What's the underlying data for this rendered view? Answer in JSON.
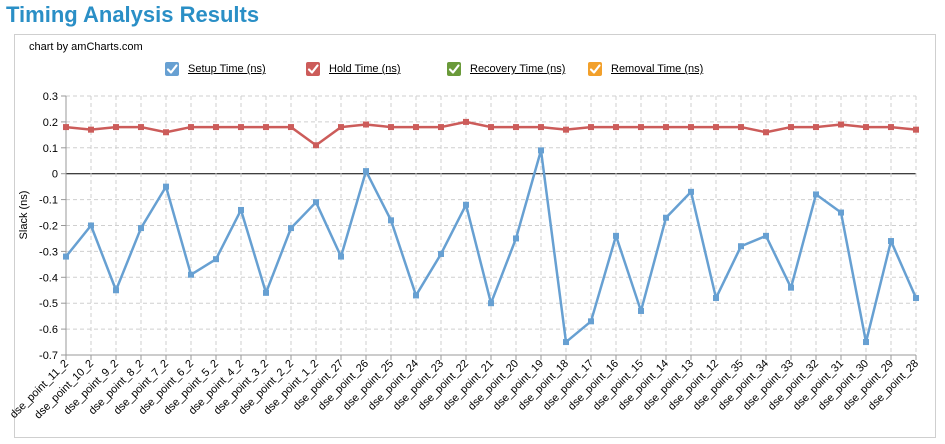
{
  "page": {
    "title": "Timing Analysis Results"
  },
  "chart": {
    "credit": "chart by amCharts.com"
  },
  "legend": [
    {
      "label": "Setup Time (ns)",
      "color": "#67a0d2",
      "checked": true
    },
    {
      "label": "Hold Time (ns)",
      "color": "#cc5c5a",
      "checked": true
    },
    {
      "label": "Recovery Time (ns)",
      "color": "#6a9a3a",
      "checked": true
    },
    {
      "label": "Removal Time (ns)",
      "color": "#f2a02b",
      "checked": true
    }
  ],
  "chart_data": {
    "type": "line",
    "ylabel": "Slack (ns)",
    "ylim": [
      -0.7,
      0.3
    ],
    "yticks": [
      0.3,
      0.2,
      0.1,
      0,
      -0.1,
      -0.2,
      -0.3,
      -0.4,
      -0.5,
      -0.6,
      -0.7
    ],
    "grid": true,
    "legend_position": "top",
    "categories": [
      "dse_point_11_2",
      "dse_point_10_2",
      "dse_point_9_2",
      "dse_point_8_2",
      "dse_point_7_2",
      "dse_point_6_2",
      "dse_point_5_2",
      "dse_point_4_2",
      "dse_point_3_2",
      "dse_point_2_2",
      "dse_point_1_2",
      "dse_point_27",
      "dse_point_26",
      "dse_point_25",
      "dse_point_24",
      "dse_point_23",
      "dse_point_22",
      "dse_point_21",
      "dse_point_20",
      "dse_point_19",
      "dse_point_18",
      "dse_point_17",
      "dse_point_16",
      "dse_point_15",
      "dse_point_14",
      "dse_point_13",
      "dse_point_12",
      "dse_point_35",
      "dse_point_34",
      "dse_point_33",
      "dse_point_32",
      "dse_point_31",
      "dse_point_30",
      "dse_point_29",
      "dse_point_28"
    ],
    "series": [
      {
        "name": "Setup Time (ns)",
        "color": "#67a0d2",
        "values": [
          -0.32,
          -0.2,
          -0.45,
          -0.21,
          -0.05,
          -0.39,
          -0.33,
          -0.14,
          -0.46,
          -0.21,
          -0.11,
          -0.32,
          0.01,
          -0.18,
          -0.47,
          -0.31,
          -0.12,
          -0.5,
          -0.25,
          0.09,
          -0.65,
          -0.57,
          -0.24,
          -0.53,
          -0.17,
          -0.07,
          -0.48,
          -0.28,
          -0.24,
          -0.44,
          -0.08,
          -0.15,
          -0.65,
          -0.26,
          -0.48
        ]
      },
      {
        "name": "Hold Time (ns)",
        "color": "#cc5c5a",
        "values": [
          0.18,
          0.17,
          0.18,
          0.18,
          0.16,
          0.18,
          0.18,
          0.18,
          0.18,
          0.18,
          0.11,
          0.18,
          0.19,
          0.18,
          0.18,
          0.18,
          0.2,
          0.18,
          0.18,
          0.18,
          0.17,
          0.18,
          0.18,
          0.18,
          0.18,
          0.18,
          0.18,
          0.18,
          0.16,
          0.18,
          0.18,
          0.19,
          0.18,
          0.18,
          0.17
        ]
      }
    ]
  }
}
